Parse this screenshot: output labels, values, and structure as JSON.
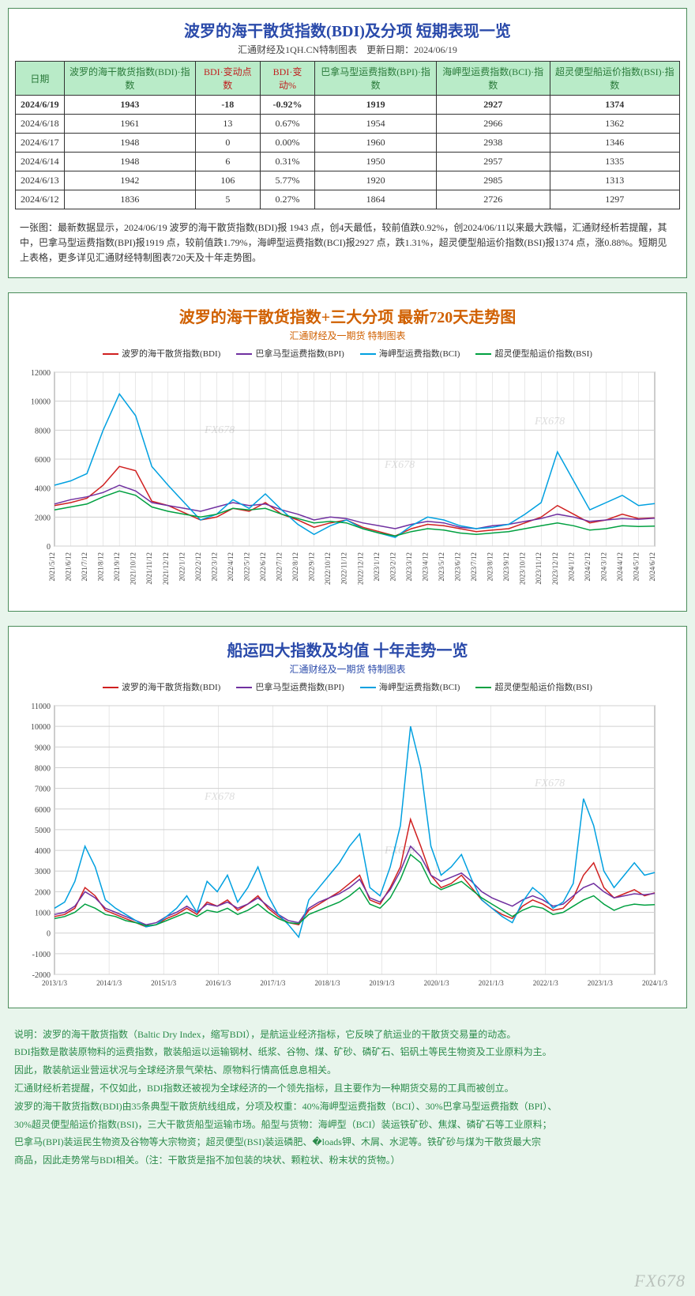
{
  "table_panel": {
    "title": "波罗的海干散货指数(BDI)及分项 短期表现一览",
    "subtitle": "汇通财经及1QH.CN特制图表　更新日期：2024/06/19",
    "columns": [
      {
        "label": "日期",
        "color": "green"
      },
      {
        "label": "波罗的海干散货指数(BDI)·指数",
        "color": "green"
      },
      {
        "label": "BDI·变动点数",
        "color": "red"
      },
      {
        "label": "BDI·变动%",
        "color": "red"
      },
      {
        "label": "巴拿马型运费指数(BPI)·指数",
        "color": "green"
      },
      {
        "label": "海岬型运费指数(BCI)·指数",
        "color": "green"
      },
      {
        "label": "超灵便型船运价指数(BSI)·指数",
        "color": "green"
      }
    ],
    "rows": [
      {
        "cells": [
          "2024/6/19",
          "1943",
          "-18",
          "-0.92%",
          "1919",
          "2927",
          "1374"
        ],
        "highlight": true
      },
      {
        "cells": [
          "2024/6/18",
          "1961",
          "13",
          "0.67%",
          "1954",
          "2966",
          "1362"
        ],
        "highlight": false
      },
      {
        "cells": [
          "2024/6/17",
          "1948",
          "0",
          "0.00%",
          "1960",
          "2938",
          "1346"
        ],
        "highlight": false
      },
      {
        "cells": [
          "2024/6/14",
          "1948",
          "6",
          "0.31%",
          "1950",
          "2957",
          "1335"
        ],
        "highlight": false
      },
      {
        "cells": [
          "2024/6/13",
          "1942",
          "106",
          "5.77%",
          "1920",
          "2985",
          "1313"
        ],
        "highlight": false
      },
      {
        "cells": [
          "2024/6/12",
          "1836",
          "5",
          "0.27%",
          "1864",
          "2726",
          "1297"
        ],
        "highlight": false
      }
    ],
    "note": "一张图：最新数据显示，2024/06/19 波罗的海干散货指数(BDI)报 1943 点，创4天最低，较前值跌0.92%，创2024/06/11以来最大跌幅，汇通财经析若提醒，其中，巴拿马型运费指数(BPI)报1919 点，较前值跌1.79%，海岬型运费指数(BCI)报2927 点，跌1.31%，超灵便型船运价指数(BSI)报1374 点，涨0.88%。短期见上表格，更多详见汇通财经特制图表720天及十年走势图。"
  },
  "chart720": {
    "title": "波罗的海干散货指数+三大分项 最新720天走势图",
    "subtitle": "汇通财经及一期货 特制图表",
    "legend": [
      {
        "label": "波罗的海干散货指数(BDI)",
        "color": "#d02020"
      },
      {
        "label": "巴拿马型运费指数(BPI)",
        "color": "#7030a0"
      },
      {
        "label": "海岬型运费指数(BCI)",
        "color": "#00a0e0"
      },
      {
        "label": "超灵便型船运价指数(BSI)",
        "color": "#00a040"
      }
    ],
    "ylim": [
      0,
      12000
    ],
    "ytick_step": 2000,
    "yticks": [
      0,
      2000,
      4000,
      6000,
      8000,
      10000,
      12000
    ],
    "xlabels": [
      "2021/5/12",
      "2021/6/12",
      "2021/7/12",
      "2021/8/12",
      "2021/9/12",
      "2021/10/12",
      "2021/11/12",
      "2021/12/12",
      "2022/1/12",
      "2022/2/12",
      "2022/3/12",
      "2022/4/12",
      "2022/5/12",
      "2022/6/12",
      "2022/7/12",
      "2022/8/12",
      "2022/9/12",
      "2022/10/12",
      "2022/11/12",
      "2022/12/12",
      "2023/1/12",
      "2023/2/12",
      "2023/3/12",
      "2023/4/12",
      "2023/5/12",
      "2023/6/12",
      "2023/7/12",
      "2023/8/12",
      "2023/9/12",
      "2023/10/12",
      "2023/11/12",
      "2023/12/12",
      "2024/1/12",
      "2024/2/12",
      "2024/3/12",
      "2024/4/12",
      "2024/5/12",
      "2024/6/12"
    ],
    "grid_color": "#d0d0d0",
    "background_color": "#ffffff",
    "watermark": "FX678",
    "series": {
      "bdi": [
        2800,
        3000,
        3300,
        4200,
        5500,
        5200,
        3100,
        2800,
        2300,
        1800,
        2000,
        2600,
        2400,
        3000,
        2200,
        1800,
        1300,
        1600,
        1800,
        1300,
        1000,
        700,
        1200,
        1500,
        1400,
        1200,
        1000,
        1100,
        1200,
        1600,
        2000,
        2800,
        2200,
        1600,
        1800,
        2200,
        1900,
        1943
      ],
      "bpi": [
        2900,
        3200,
        3400,
        3700,
        4200,
        3800,
        3000,
        2800,
        2600,
        2400,
        2700,
        3000,
        2800,
        2900,
        2500,
        2200,
        1800,
        2000,
        1900,
        1600,
        1400,
        1200,
        1500,
        1700,
        1600,
        1300,
        1200,
        1400,
        1500,
        1700,
        1900,
        2200,
        2000,
        1700,
        1800,
        1900,
        1850,
        1919
      ],
      "bci": [
        4200,
        4500,
        5000,
        8000,
        10500,
        9000,
        5500,
        4200,
        3000,
        1800,
        2200,
        3200,
        2600,
        3600,
        2500,
        1500,
        800,
        1400,
        1800,
        1200,
        900,
        600,
        1400,
        2000,
        1800,
        1400,
        1200,
        1300,
        1500,
        2200,
        3000,
        6500,
        4500,
        2500,
        3000,
        3500,
        2800,
        2927
      ],
      "bsi": [
        2500,
        2700,
        2900,
        3400,
        3800,
        3500,
        2700,
        2400,
        2200,
        2000,
        2200,
        2600,
        2500,
        2600,
        2200,
        1900,
        1600,
        1700,
        1600,
        1200,
        900,
        700,
        1000,
        1200,
        1100,
        900,
        800,
        900,
        1000,
        1200,
        1400,
        1600,
        1400,
        1100,
        1200,
        1400,
        1350,
        1374
      ]
    }
  },
  "chart10y": {
    "title": "船运四大指数及均值 十年走势一览",
    "subtitle": "汇通财经及一期货 特制图表",
    "legend": [
      {
        "label": "波罗的海干散货指数(BDI)",
        "color": "#d02020"
      },
      {
        "label": "巴拿马型运费指数(BPI)",
        "color": "#7030a0"
      },
      {
        "label": "海岬型运费指数(BCI)",
        "color": "#00a0e0"
      },
      {
        "label": "超灵便型船运价指数(BSI)",
        "color": "#00a040"
      }
    ],
    "ylim": [
      -2000,
      11000
    ],
    "ytick_step": 1000,
    "yticks": [
      -2000,
      -1000,
      0,
      1000,
      2000,
      3000,
      4000,
      5000,
      6000,
      7000,
      8000,
      9000,
      10000,
      11000
    ],
    "xlabels": [
      "2013/1/3",
      "2014/1/3",
      "2015/1/3",
      "2016/1/3",
      "2017/1/3",
      "2018/1/3",
      "2019/1/3",
      "2020/1/3",
      "2021/1/3",
      "2022/1/3",
      "2023/1/3",
      "2024/1/3"
    ],
    "grid_color": "#d0d0d0",
    "background_color": "#ffffff",
    "watermark": "FX678",
    "series_points": 60,
    "series": {
      "bdi": [
        800,
        900,
        1200,
        2200,
        1800,
        1100,
        900,
        700,
        500,
        300,
        400,
        700,
        900,
        1200,
        900,
        1500,
        1300,
        1600,
        1100,
        1400,
        1800,
        1200,
        800,
        500,
        400,
        1100,
        1400,
        1700,
        2000,
        2400,
        2800,
        1600,
        1400,
        2200,
        3200,
        5500,
        4200,
        2800,
        2200,
        2400,
        2800,
        2200,
        1600,
        1200,
        900,
        700,
        1300,
        1600,
        1400,
        1100,
        1200,
        1700,
        2800,
        3400,
        2200,
        1700,
        1900,
        2100,
        1800,
        1943
      ],
      "bpi": [
        900,
        1000,
        1300,
        2000,
        1700,
        1200,
        1000,
        800,
        600,
        400,
        500,
        800,
        1000,
        1300,
        1000,
        1400,
        1300,
        1500,
        1200,
        1400,
        1700,
        1300,
        900,
        600,
        500,
        1200,
        1500,
        1700,
        1900,
        2200,
        2600,
        1700,
        1500,
        2100,
        3000,
        4200,
        3700,
        2800,
        2500,
        2700,
        2900,
        2500,
        2000,
        1700,
        1500,
        1300,
        1600,
        1800,
        1600,
        1300,
        1400,
        1800,
        2200,
        2400,
        2000,
        1700,
        1800,
        1900,
        1850,
        1919
      ],
      "bci": [
        1200,
        1500,
        2500,
        4200,
        3200,
        1600,
        1200,
        900,
        600,
        300,
        400,
        800,
        1200,
        1800,
        1000,
        2500,
        2000,
        2800,
        1500,
        2200,
        3200,
        1800,
        900,
        400,
        -200,
        1600,
        2200,
        2800,
        3400,
        4200,
        4800,
        2200,
        1800,
        3200,
        5200,
        10000,
        8000,
        4200,
        2800,
        3200,
        3800,
        2600,
        1600,
        1200,
        800,
        500,
        1500,
        2200,
        1800,
        1200,
        1500,
        2400,
        6500,
        5200,
        3000,
        2200,
        2800,
        3400,
        2800,
        2927
      ],
      "bsi": [
        700,
        800,
        1000,
        1400,
        1200,
        900,
        800,
        600,
        500,
        350,
        400,
        600,
        800,
        1000,
        800,
        1100,
        1000,
        1200,
        900,
        1100,
        1400,
        1000,
        700,
        500,
        450,
        900,
        1100,
        1300,
        1500,
        1800,
        2200,
        1400,
        1200,
        1700,
        2600,
        3800,
        3400,
        2400,
        2100,
        2300,
        2500,
        2100,
        1700,
        1400,
        1100,
        800,
        1100,
        1300,
        1200,
        900,
        1000,
        1300,
        1600,
        1800,
        1400,
        1100,
        1300,
        1400,
        1350,
        1374
      ]
    }
  },
  "description": {
    "lines": [
      "说明：波罗的海干散货指数（Baltic Dry Index，缩写BDI），是航运业经济指标，它反映了航运业的干散货交易量的动态。",
      "BDI指数是散装原物料的运费指数，散装船运以运输钢材、纸浆、谷物、煤、矿砂、磷矿石、铝矾土等民生物资及工业原料为主。",
      "因此，散装航运业营运状况与全球经济景气荣枯、原物料行情高低息息相关。",
      "汇通财经析若提醒，不仅如此，BDI指数还被视为全球经济的一个领先指标，且主要作为一种期货交易的工具而被创立。",
      "波罗的海干散货指数(BDI)由35条典型干散货航线组成，分项及权重：40%海岬型运费指数（BCI）、30%巴拿马型运费指数（BPI）、",
      "30%超灵便型船运价指数(BSI)，三大干散货船型运输市场。船型与货物：海岬型（BCI）装运铁矿砂、焦煤、磷矿石等工业原料；",
      "巴拿马(BPI)装运民生物资及谷物等大宗物资；超灵便型(BSI)装运磷肥、�loads钾、木屑、水泥等。铁矿砂与煤为干散货最大宗",
      "商品，因此走势常与BDI相关。（注：干散货是指不加包装的块状、颗粒状、粉末状的货物。）"
    ]
  },
  "global_watermark": "FX678"
}
